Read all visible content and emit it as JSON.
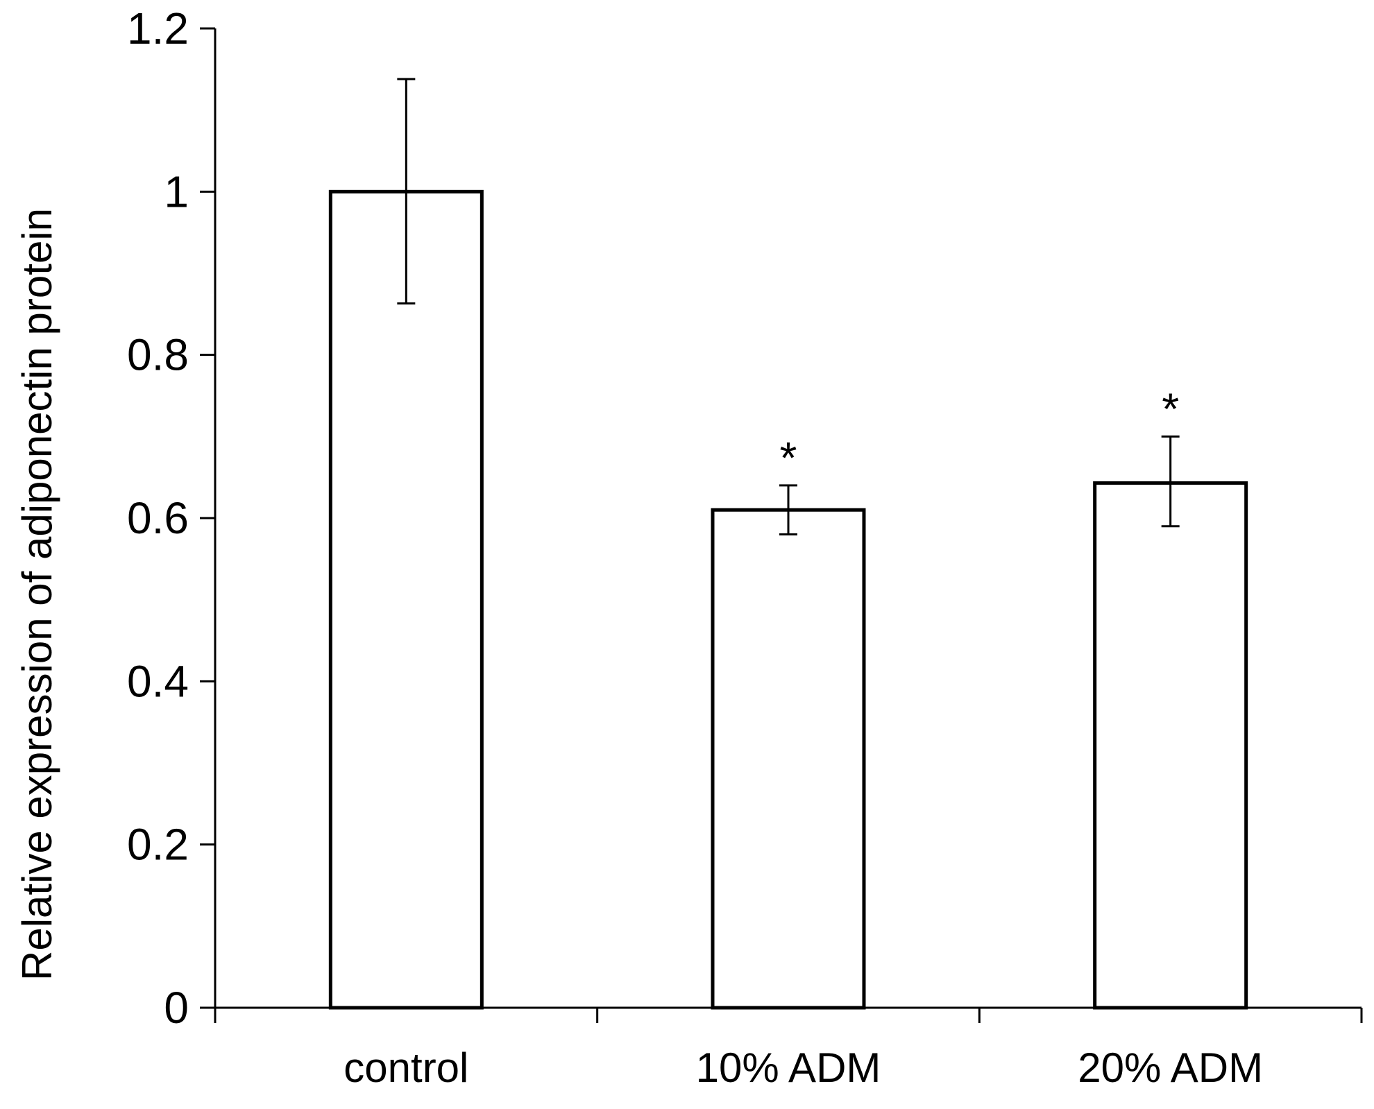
{
  "chart_data": {
    "type": "bar",
    "title": "",
    "xlabel": "",
    "ylabel": "Relative expression of adiponectin protein",
    "categories": [
      "control",
      "10% ADM",
      "20% ADM"
    ],
    "values": [
      1.0,
      0.61,
      0.643
    ],
    "error_upper": [
      1.138,
      0.64,
      0.7
    ],
    "error_lower": [
      0.863,
      0.58,
      0.59
    ],
    "annotations": [
      "",
      "*",
      "*"
    ],
    "ylim": [
      0,
      1.2
    ],
    "yticks": [
      0,
      0.2,
      0.4,
      0.6,
      0.8,
      1,
      1.2
    ],
    "ytick_labels": [
      "0",
      "0.2",
      "0.4",
      "0.6",
      "0.8",
      "1",
      "1.2"
    ],
    "grid": false,
    "legend": "none",
    "colors": {
      "bar_fill": "#ffffff",
      "bar_stroke": "#000000",
      "axis": "#000000",
      "text": "#000000"
    }
  }
}
